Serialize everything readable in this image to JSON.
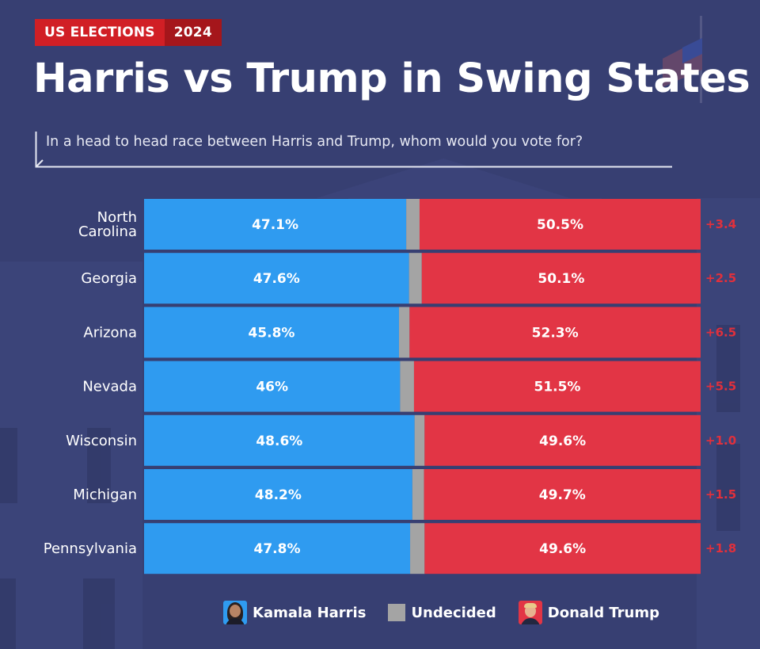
{
  "header": {
    "badge_left": "US ELECTIONS",
    "badge_right": "2024",
    "title": "Harris vs Trump in Swing States",
    "question": "In a head to head race between Harris and Trump, whom would you vote for?"
  },
  "legend": {
    "harris": "Kamala Harris",
    "undecided": "Undecided",
    "trump": "Donald Trump"
  },
  "colors": {
    "harris": "#2f9bf0",
    "undecided": "#a4a4a4",
    "trump": "#e23545",
    "margin_text": "#e0303c",
    "background": "#373f72"
  },
  "chart_data": {
    "type": "bar",
    "orientation": "horizontal",
    "stacked": true,
    "title": "Harris vs Trump in Swing States",
    "subtitle": "In a head to head race between Harris and Trump, whom would you vote for?",
    "categories": [
      "North Carolina",
      "Georgia",
      "Arizona",
      "Nevada",
      "Wisconsin",
      "Michigan",
      "Pennsylvania"
    ],
    "category_lines": [
      [
        "North",
        "Carolina"
      ],
      [
        "Georgia"
      ],
      [
        "Arizona"
      ],
      [
        "Nevada"
      ],
      [
        "Wisconsin"
      ],
      [
        "Michigan"
      ],
      [
        "Pennsylvania"
      ]
    ],
    "series": [
      {
        "name": "Kamala Harris",
        "values": [
          47.1,
          47.6,
          45.8,
          46,
          48.6,
          48.2,
          47.8
        ],
        "labels": [
          "47.1%",
          "47.6%",
          "45.8%",
          "46%",
          "48.6%",
          "48.2%",
          "47.8%"
        ]
      },
      {
        "name": "Undecided",
        "values": [
          2.4,
          2.3,
          1.9,
          2.5,
          1.8,
          2.1,
          2.6
        ]
      },
      {
        "name": "Donald Trump",
        "values": [
          50.5,
          50.1,
          52.3,
          51.5,
          49.6,
          49.7,
          49.6
        ],
        "labels": [
          "50.5%",
          "50.1%",
          "52.3%",
          "51.5%",
          "49.6%",
          "49.7%",
          "49.6%"
        ]
      }
    ],
    "margins": [
      "+3.4",
      "+2.5",
      "+6.5",
      "+5.5",
      "+1.0",
      "+1.5",
      "+1.8"
    ],
    "xlim": [
      0,
      100
    ],
    "legend_position": "bottom"
  }
}
